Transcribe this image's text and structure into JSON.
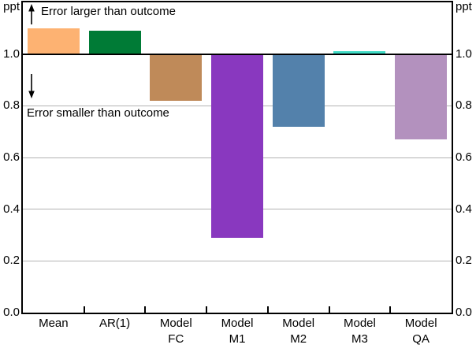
{
  "figure": {
    "unit_label_left": "ppt",
    "unit_label_right": "ppt",
    "annotation_larger": "Error larger than outcome",
    "annotation_smaller": "Error smaller than outcome"
  },
  "chart_data": {
    "type": "bar",
    "title": "",
    "xlabel": "",
    "ylabel": "ppt",
    "categories": [
      "Mean",
      "AR(1)",
      "Model FC",
      "Model M1",
      "Model M2",
      "Model M3",
      "Model QA"
    ],
    "category_label_lines": [
      [
        "Mean"
      ],
      [
        "AR(1)"
      ],
      [
        "Model",
        "FC"
      ],
      [
        "Model",
        "M1"
      ],
      [
        "Model",
        "M2"
      ],
      [
        "Model",
        "M3"
      ],
      [
        "Model",
        "QA"
      ]
    ],
    "values": [
      1.1,
      1.09,
      0.82,
      0.29,
      0.72,
      1.01,
      0.67
    ],
    "bar_colors": [
      "#FDB272",
      "#007B36",
      "#BF8A59",
      "#8938BF",
      "#5381AB",
      "#3EDAC4",
      "#B391BE"
    ],
    "baseline": 1.0,
    "ylim": [
      0.0,
      1.2
    ],
    "yticks": [
      1.0,
      0.8,
      0.6,
      0.4,
      0.2,
      0.0
    ],
    "ytick_labels": [
      "1.0",
      "0.8",
      "0.6",
      "0.4",
      "0.2",
      "0.0"
    ],
    "gridlines": [
      0.2,
      0.4,
      0.6,
      0.8
    ],
    "grid_on": true,
    "grid_color": "#b3b3b3",
    "axis_color": "#000000",
    "legend_position": "none",
    "annotations": [
      "Error larger than outcome",
      "Error smaller than outcome"
    ]
  }
}
